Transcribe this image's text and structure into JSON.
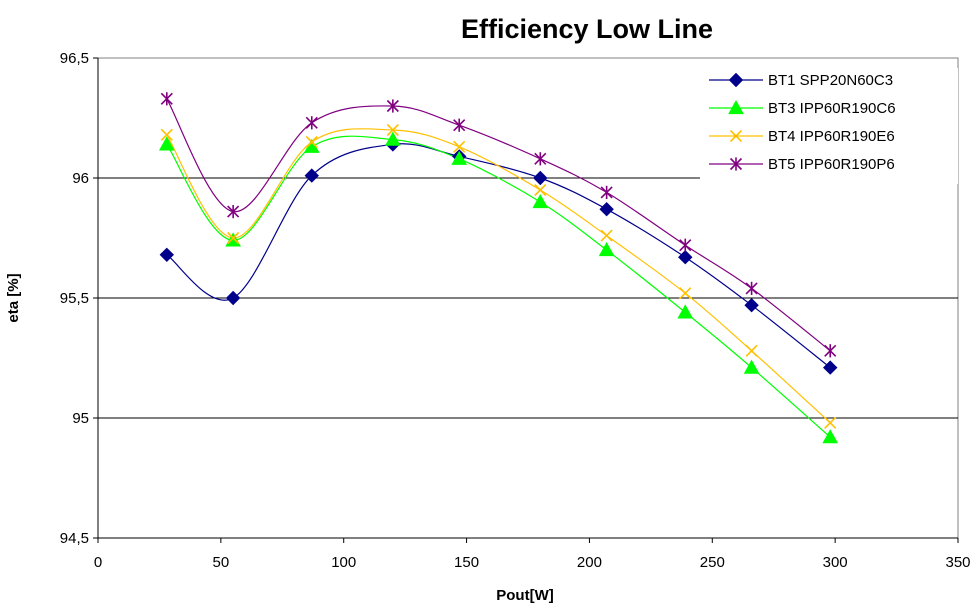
{
  "chart_data": {
    "type": "line",
    "title": "Efficiency Low Line",
    "xlabel": "Pout[W]",
    "ylabel": "eta [%]",
    "xlim": [
      0,
      350
    ],
    "ylim": [
      94.5,
      96.5
    ],
    "xticks": [
      0,
      50,
      100,
      150,
      200,
      250,
      300,
      350
    ],
    "yticks": [
      94.5,
      95,
      95.5,
      96,
      96.5
    ],
    "xtick_labels": [
      "0",
      "50",
      "100",
      "150",
      "200",
      "250",
      "300",
      "350"
    ],
    "ytick_labels": [
      "94,5",
      "95",
      "95,5",
      "96",
      "96,5"
    ],
    "grid": "horizontal major lines",
    "legend_position": "top-right",
    "smooth": true,
    "series": [
      {
        "name": "BT1 SPP20N60C3",
        "color": "#00008B",
        "marker": "diamond",
        "x": [
          28,
          55,
          87,
          120,
          147,
          180,
          207,
          239,
          266,
          298
        ],
        "y": [
          95.68,
          95.5,
          96.01,
          96.14,
          96.09,
          96.0,
          95.87,
          95.67,
          95.47,
          95.21
        ]
      },
      {
        "name": "BT3 IPP60R190C6",
        "color": "#00FF00",
        "marker": "triangle",
        "x": [
          28,
          55,
          87,
          120,
          147,
          180,
          207,
          239,
          266,
          298
        ],
        "y": [
          96.14,
          95.74,
          96.13,
          96.16,
          96.08,
          95.9,
          95.7,
          95.44,
          95.21,
          94.92
        ]
      },
      {
        "name": "BT4 IPP60R190E6",
        "color": "#FFC000",
        "marker": "x",
        "x": [
          28,
          55,
          87,
          120,
          147,
          180,
          207,
          239,
          266,
          298
        ],
        "y": [
          96.18,
          95.75,
          96.15,
          96.2,
          96.13,
          95.95,
          95.76,
          95.52,
          95.28,
          94.98
        ]
      },
      {
        "name": "BT5 IPP60R190P6",
        "color": "#800080",
        "marker": "asterisk",
        "x": [
          28,
          55,
          87,
          120,
          147,
          180,
          207,
          239,
          266,
          298
        ],
        "y": [
          96.33,
          95.86,
          96.23,
          96.3,
          96.22,
          96.08,
          95.94,
          95.72,
          95.54,
          95.28
        ]
      }
    ]
  }
}
